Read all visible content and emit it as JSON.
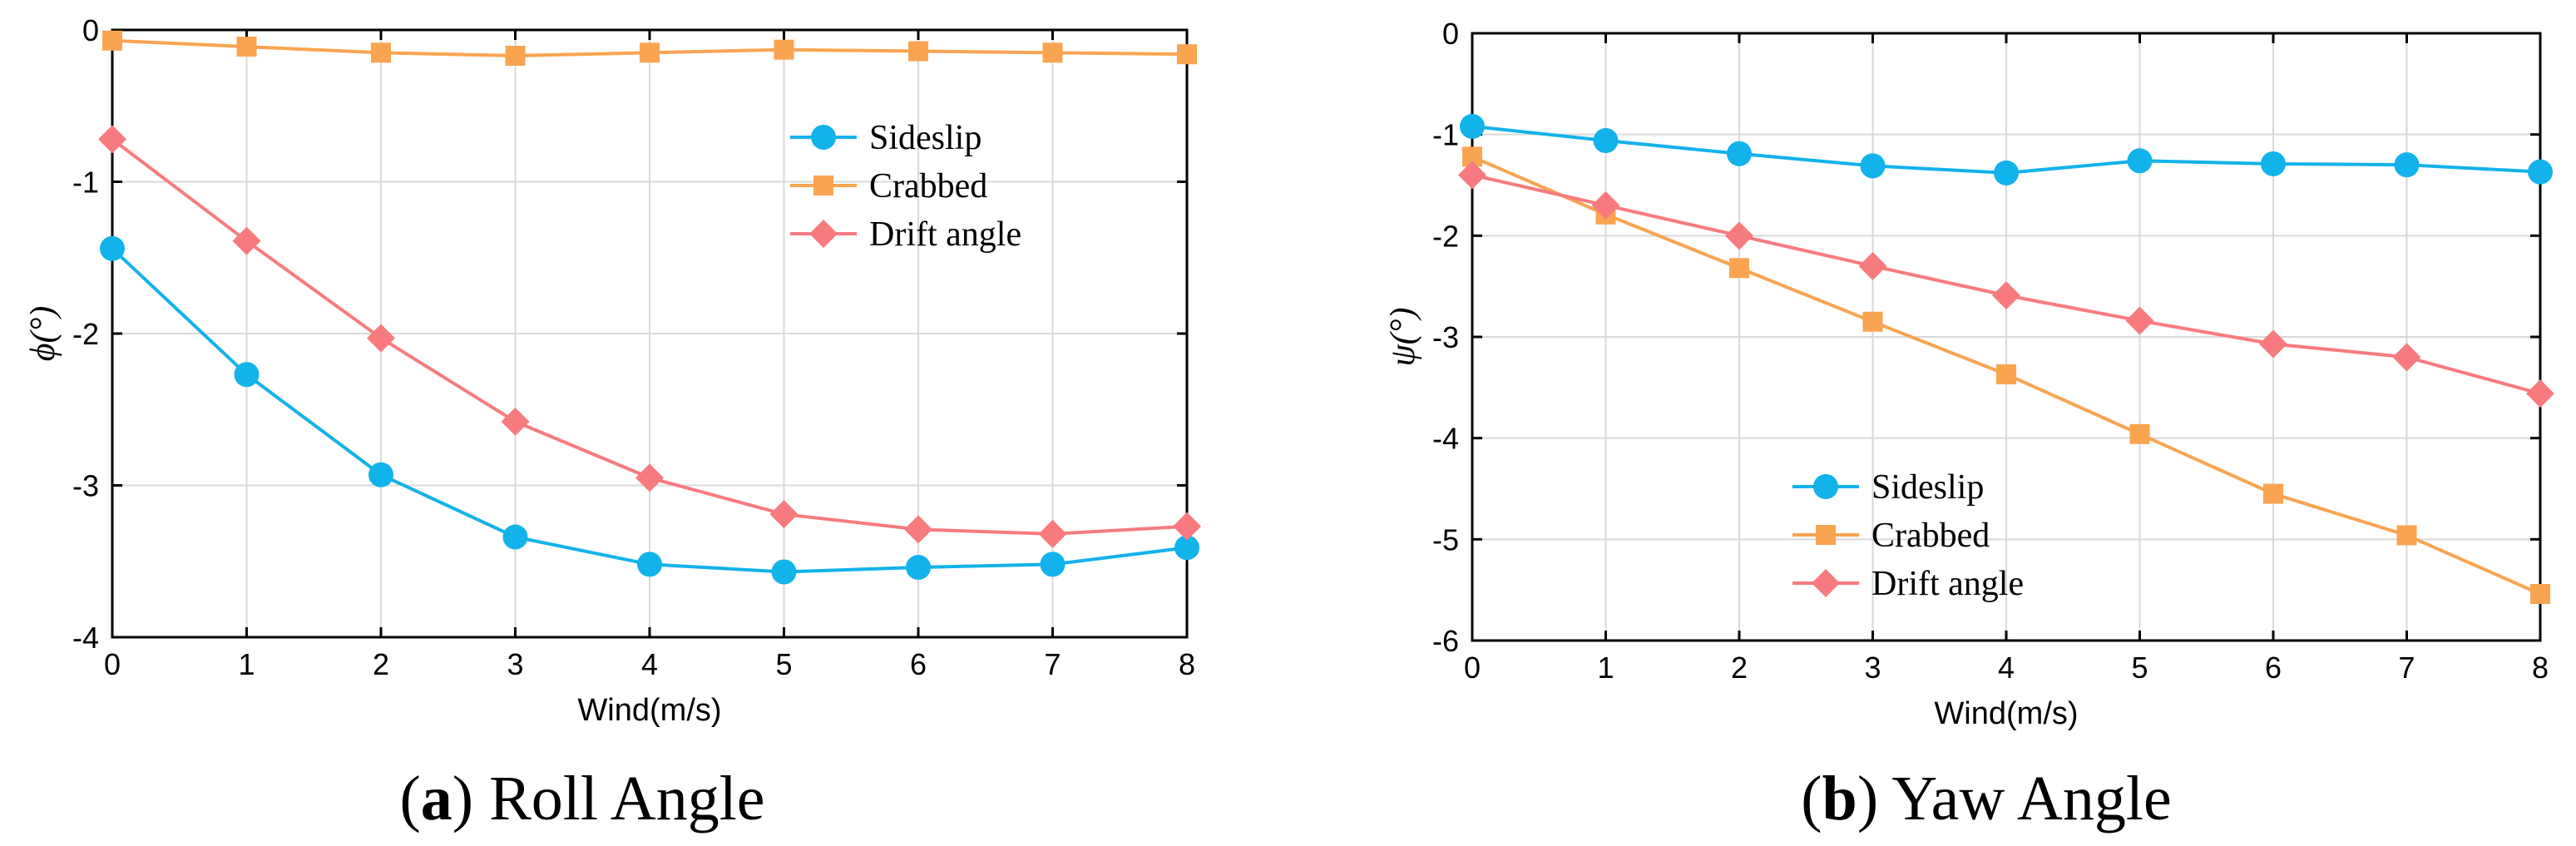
{
  "colors": {
    "sideslip": "#12b2ea",
    "crabbed": "#f9a451",
    "drift": "#f77b7e"
  },
  "chart_data": [
    {
      "type": "line",
      "panel_letter": "a",
      "caption": "Roll Angle",
      "xlabel": "Wind(m/s)",
      "ylabel": "ϕ(°)",
      "xlim": [
        0,
        8
      ],
      "ylim": [
        -4,
        0
      ],
      "xticks": [
        "0",
        "1",
        "2",
        "3",
        "4",
        "5",
        "6",
        "7",
        "8"
      ],
      "yticks": [
        "-4",
        "-3",
        "-2",
        "-1",
        "0"
      ],
      "legend_position": "right-middle",
      "x": [
        0,
        1,
        2,
        3,
        4,
        5,
        6,
        7,
        8
      ],
      "series": [
        {
          "name": "Sideslip",
          "marker": "circle",
          "color_key": "sideslip",
          "values": [
            -1.44,
            -2.27,
            -2.93,
            -3.34,
            -3.52,
            -3.57,
            -3.54,
            -3.52,
            -3.41
          ]
        },
        {
          "name": "Crabbed",
          "marker": "square",
          "color_key": "crabbed",
          "values": [
            -0.07,
            -0.11,
            -0.15,
            -0.17,
            -0.15,
            -0.13,
            -0.14,
            -0.15,
            -0.16
          ]
        },
        {
          "name": "Drift angle",
          "marker": "diamond",
          "color_key": "drift",
          "values": [
            -0.72,
            -1.39,
            -2.03,
            -2.58,
            -2.95,
            -3.19,
            -3.29,
            -3.32,
            -3.27
          ]
        }
      ]
    },
    {
      "type": "line",
      "panel_letter": "b",
      "caption": "Yaw Angle",
      "xlabel": "Wind(m/s)",
      "ylabel": "ψ(°)",
      "xlim": [
        0,
        8
      ],
      "ylim": [
        -6,
        0
      ],
      "xticks": [
        "0",
        "1",
        "2",
        "3",
        "4",
        "5",
        "6",
        "7",
        "8"
      ],
      "yticks": [
        "-6",
        "-5",
        "-4",
        "-3",
        "-2",
        "-1",
        "0"
      ],
      "legend_position": "bottom-left",
      "x": [
        0,
        1,
        2,
        3,
        4,
        5,
        6,
        7,
        8
      ],
      "series": [
        {
          "name": "Sideslip",
          "marker": "circle",
          "color_key": "sideslip",
          "values": [
            -0.92,
            -1.06,
            -1.19,
            -1.31,
            -1.38,
            -1.26,
            -1.29,
            -1.3,
            -1.37
          ]
        },
        {
          "name": "Crabbed",
          "marker": "square",
          "color_key": "crabbed",
          "values": [
            -1.22,
            -1.79,
            -2.32,
            -2.85,
            -3.37,
            -3.96,
            -4.55,
            -4.96,
            -5.54
          ]
        },
        {
          "name": "Drift angle",
          "marker": "diamond",
          "color_key": "drift",
          "values": [
            -1.4,
            -1.7,
            -2.0,
            -2.3,
            -2.59,
            -2.84,
            -3.07,
            -3.2,
            -3.56
          ]
        }
      ]
    }
  ]
}
